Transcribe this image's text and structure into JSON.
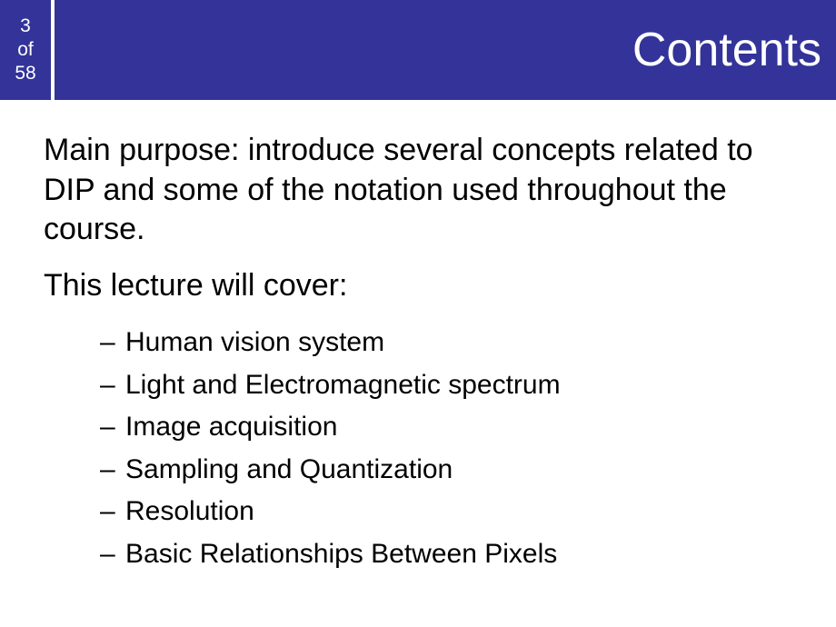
{
  "header": {
    "page_current": "3",
    "page_of": "of",
    "page_total": "58",
    "title": "Contents"
  },
  "body": {
    "paragraph1": "Main purpose: introduce several concepts related to DIP and some of the notation used throughout the course.",
    "paragraph2": "This lecture will cover:",
    "bullets": [
      "Human vision system",
      "Light and Electromagnetic spectrum",
      "Image acquisition",
      "Sampling and Quantization",
      "Resolution",
      "Basic Relationships Between Pixels"
    ]
  },
  "colors": {
    "header_bg": "#333399",
    "header_text": "#ffffff",
    "body_bg": "#ffffff",
    "body_text": "#000000"
  }
}
